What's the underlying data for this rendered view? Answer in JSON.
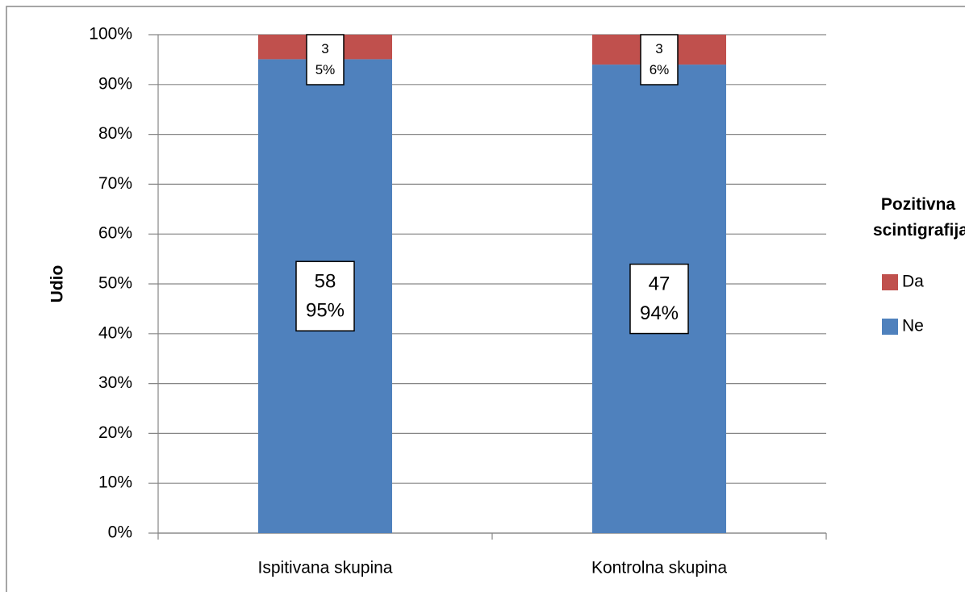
{
  "chart_data": {
    "type": "stacked_bar_percent",
    "y_label": "Udio",
    "legend_title": "Pozitivna scintigrafija",
    "legend_position": "right",
    "categories": [
      "Ispitivana skupina",
      "Kontrolna skupina"
    ],
    "series": [
      {
        "name": "Ne",
        "color": "#4f81bd",
        "values": [
          95.08,
          94
        ],
        "counts": [
          58,
          47
        ],
        "value_labels": [
          "95%",
          "94%"
        ]
      },
      {
        "name": "Da",
        "color": "#c0504d",
        "values": [
          4.92,
          6
        ],
        "counts": [
          3,
          3
        ],
        "value_labels": [
          "5%",
          "6%"
        ]
      }
    ],
    "ylim": [
      0,
      100
    ],
    "yticks": [
      {
        "value": 0,
        "label": "0%"
      },
      {
        "value": 10,
        "label": "10%"
      },
      {
        "value": 20,
        "label": "20%"
      },
      {
        "value": 30,
        "label": "30%"
      },
      {
        "value": 40,
        "label": "40%"
      },
      {
        "value": 50,
        "label": "50%"
      },
      {
        "value": 60,
        "label": "60%"
      },
      {
        "value": 70,
        "label": "70%"
      },
      {
        "value": 80,
        "label": "80%"
      },
      {
        "value": 90,
        "label": "90%"
      },
      {
        "value": 100,
        "label": "100%"
      }
    ],
    "grid": true
  }
}
